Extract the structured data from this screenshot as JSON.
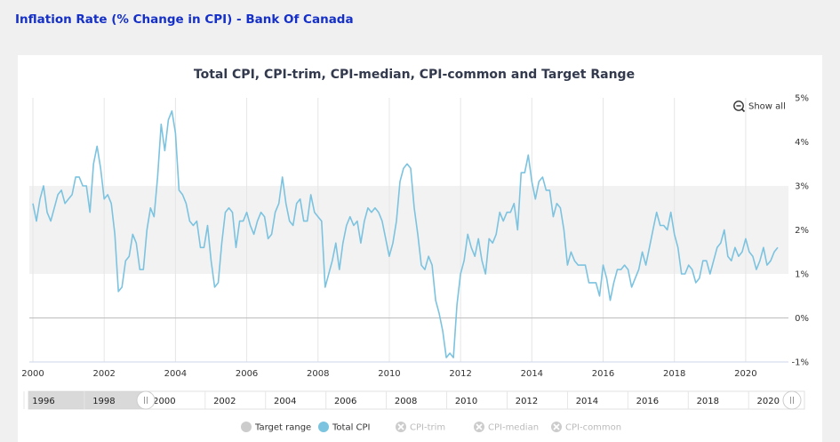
{
  "page": {
    "title": "Inflation Rate (% Change in CPI) - Bank Of Canada"
  },
  "show_all": {
    "label": "Show all"
  },
  "colors": {
    "total_cpi": "#7cc3e0",
    "target_band": "#f2f2f2",
    "legend_on_dot": "#cccccc",
    "legend_off": "#cccccc",
    "title": "#333a4d",
    "page_title": "#1530c8"
  },
  "chart_data": {
    "type": "line",
    "title": "Total CPI, CPI-trim, CPI-median, CPI-common and Target Range",
    "xlim": [
      1999.9,
      2021.2
    ],
    "ylim": [
      -1,
      5
    ],
    "x_ticks": [
      2000,
      2002,
      2004,
      2006,
      2008,
      2010,
      2012,
      2014,
      2016,
      2018,
      2020
    ],
    "x_tick_labels": [
      "2000",
      "2002",
      "2004",
      "2006",
      "2008",
      "2010",
      "2012",
      "2014",
      "2016",
      "2018",
      "2020"
    ],
    "y_ticks": [
      -1,
      0,
      1,
      2,
      3,
      4,
      5
    ],
    "y_tick_labels": [
      "-1%",
      "0%",
      "1%",
      "2%",
      "3%",
      "4%",
      "5%"
    ],
    "grid": "vertical",
    "target_range": [
      1,
      3
    ],
    "legend_position": "bottom-center",
    "legend": [
      {
        "label": "Target range",
        "visible": true
      },
      {
        "label": "Total CPI",
        "visible": true
      },
      {
        "label": "CPI-trim",
        "visible": false
      },
      {
        "label": "CPI-median",
        "visible": false
      },
      {
        "label": "CPI-common",
        "visible": false
      }
    ],
    "series": [
      {
        "name": "Total CPI",
        "points": [
          [
            2000.0,
            2.6
          ],
          [
            2000.1,
            2.2
          ],
          [
            2000.2,
            2.7
          ],
          [
            2000.3,
            3.0
          ],
          [
            2000.4,
            2.4
          ],
          [
            2000.5,
            2.2
          ],
          [
            2000.6,
            2.5
          ],
          [
            2000.7,
            2.8
          ],
          [
            2000.8,
            2.9
          ],
          [
            2000.9,
            2.6
          ],
          [
            2001.0,
            2.7
          ],
          [
            2001.1,
            2.8
          ],
          [
            2001.2,
            3.2
          ],
          [
            2001.3,
            3.2
          ],
          [
            2001.4,
            3.0
          ],
          [
            2001.5,
            3.0
          ],
          [
            2001.6,
            2.4
          ],
          [
            2001.7,
            3.5
          ],
          [
            2001.8,
            3.9
          ],
          [
            2001.9,
            3.4
          ],
          [
            2002.0,
            2.7
          ],
          [
            2002.1,
            2.8
          ],
          [
            2002.2,
            2.6
          ],
          [
            2002.3,
            1.9
          ],
          [
            2002.4,
            0.6
          ],
          [
            2002.5,
            0.7
          ],
          [
            2002.6,
            1.3
          ],
          [
            2002.7,
            1.4
          ],
          [
            2002.8,
            1.9
          ],
          [
            2002.9,
            1.7
          ],
          [
            2003.0,
            1.1
          ],
          [
            2003.1,
            1.1
          ],
          [
            2003.2,
            2.0
          ],
          [
            2003.3,
            2.5
          ],
          [
            2003.4,
            2.3
          ],
          [
            2003.5,
            3.2
          ],
          [
            2003.6,
            4.4
          ],
          [
            2003.7,
            3.8
          ],
          [
            2003.8,
            4.5
          ],
          [
            2003.9,
            4.7
          ],
          [
            2004.0,
            4.2
          ],
          [
            2004.1,
            2.9
          ],
          [
            2004.2,
            2.8
          ],
          [
            2004.3,
            2.6
          ],
          [
            2004.4,
            2.2
          ],
          [
            2004.5,
            2.1
          ],
          [
            2004.6,
            2.2
          ],
          [
            2004.7,
            1.6
          ],
          [
            2004.8,
            1.6
          ],
          [
            2004.9,
            2.1
          ],
          [
            2005.0,
            1.3
          ],
          [
            2005.1,
            0.7
          ],
          [
            2005.2,
            0.8
          ],
          [
            2005.3,
            1.7
          ],
          [
            2005.4,
            2.4
          ],
          [
            2005.5,
            2.5
          ],
          [
            2005.6,
            2.4
          ],
          [
            2005.7,
            1.6
          ],
          [
            2005.8,
            2.2
          ],
          [
            2005.9,
            2.2
          ],
          [
            2006.0,
            2.4
          ],
          [
            2006.1,
            2.1
          ],
          [
            2006.2,
            1.9
          ],
          [
            2006.3,
            2.2
          ],
          [
            2006.4,
            2.4
          ],
          [
            2006.5,
            2.3
          ],
          [
            2006.6,
            1.8
          ],
          [
            2006.7,
            1.9
          ],
          [
            2006.8,
            2.4
          ],
          [
            2006.9,
            2.6
          ],
          [
            2007.0,
            3.2
          ],
          [
            2007.1,
            2.6
          ],
          [
            2007.2,
            2.2
          ],
          [
            2007.3,
            2.1
          ],
          [
            2007.4,
            2.6
          ],
          [
            2007.5,
            2.7
          ],
          [
            2007.6,
            2.2
          ],
          [
            2007.7,
            2.2
          ],
          [
            2007.8,
            2.8
          ],
          [
            2007.9,
            2.4
          ],
          [
            2008.0,
            2.3
          ],
          [
            2008.1,
            2.2
          ],
          [
            2008.2,
            0.7
          ],
          [
            2008.3,
            1.0
          ],
          [
            2008.4,
            1.3
          ],
          [
            2008.5,
            1.7
          ],
          [
            2008.6,
            1.1
          ],
          [
            2008.7,
            1.7
          ],
          [
            2008.8,
            2.1
          ],
          [
            2008.9,
            2.3
          ],
          [
            2009.0,
            2.1
          ],
          [
            2009.1,
            2.2
          ],
          [
            2009.2,
            1.7
          ],
          [
            2009.3,
            2.2
          ],
          [
            2009.4,
            2.5
          ],
          [
            2009.5,
            2.4
          ],
          [
            2009.6,
            2.5
          ],
          [
            2009.7,
            2.4
          ],
          [
            2009.8,
            2.2
          ],
          [
            2009.9,
            1.8
          ],
          [
            2010.0,
            1.4
          ],
          [
            2010.1,
            1.7
          ],
          [
            2010.2,
            2.2
          ],
          [
            2010.3,
            3.1
          ],
          [
            2010.4,
            3.4
          ],
          [
            2010.5,
            3.5
          ],
          [
            2010.6,
            3.4
          ],
          [
            2010.7,
            2.5
          ],
          [
            2010.8,
            1.9
          ],
          [
            2010.9,
            1.2
          ],
          [
            2011.0,
            1.1
          ],
          [
            2011.1,
            1.4
          ],
          [
            2011.2,
            1.2
          ],
          [
            2011.3,
            0.4
          ],
          [
            2011.4,
            0.1
          ],
          [
            2011.5,
            -0.3
          ],
          [
            2011.6,
            -0.9
          ],
          [
            2011.7,
            -0.8
          ],
          [
            2011.8,
            -0.9
          ],
          [
            2011.9,
            0.3
          ],
          [
            2012.0,
            1.0
          ],
          [
            2012.1,
            1.3
          ],
          [
            2012.2,
            1.9
          ],
          [
            2012.3,
            1.6
          ],
          [
            2012.4,
            1.4
          ],
          [
            2012.5,
            1.8
          ],
          [
            2012.6,
            1.3
          ],
          [
            2012.7,
            1.0
          ],
          [
            2012.8,
            1.8
          ],
          [
            2012.9,
            1.7
          ],
          [
            2013.0,
            1.9
          ],
          [
            2013.1,
            2.4
          ],
          [
            2013.2,
            2.2
          ],
          [
            2013.3,
            2.4
          ],
          [
            2013.4,
            2.4
          ],
          [
            2013.5,
            2.6
          ],
          [
            2013.6,
            2.0
          ],
          [
            2013.7,
            3.3
          ],
          [
            2013.8,
            3.3
          ],
          [
            2013.9,
            3.7
          ],
          [
            2014.0,
            3.1
          ],
          [
            2014.1,
            2.7
          ],
          [
            2014.2,
            3.1
          ],
          [
            2014.3,
            3.2
          ],
          [
            2014.4,
            2.9
          ],
          [
            2014.5,
            2.9
          ],
          [
            2014.6,
            2.3
          ],
          [
            2014.7,
            2.6
          ],
          [
            2014.8,
            2.5
          ],
          [
            2014.9,
            2.0
          ],
          [
            2015.0,
            1.2
          ],
          [
            2015.1,
            1.5
          ],
          [
            2015.2,
            1.3
          ],
          [
            2015.3,
            1.2
          ],
          [
            2015.4,
            1.2
          ],
          [
            2015.5,
            1.2
          ],
          [
            2015.6,
            0.8
          ],
          [
            2015.7,
            0.8
          ],
          [
            2015.8,
            0.8
          ],
          [
            2015.9,
            0.5
          ],
          [
            2016.0,
            1.2
          ],
          [
            2016.1,
            0.9
          ],
          [
            2016.2,
            0.4
          ],
          [
            2016.3,
            0.8
          ],
          [
            2016.4,
            1.1
          ],
          [
            2016.5,
            1.1
          ],
          [
            2016.6,
            1.2
          ],
          [
            2016.7,
            1.1
          ],
          [
            2016.8,
            0.7
          ],
          [
            2016.9,
            0.9
          ],
          [
            2017.0,
            1.1
          ],
          [
            2017.1,
            1.5
          ],
          [
            2017.2,
            1.2
          ],
          [
            2017.3,
            1.6
          ],
          [
            2017.4,
            2.0
          ],
          [
            2017.5,
            2.4
          ],
          [
            2017.6,
            2.1
          ],
          [
            2017.7,
            2.1
          ],
          [
            2017.8,
            2.0
          ],
          [
            2017.9,
            2.4
          ],
          [
            2018.0,
            1.9
          ],
          [
            2018.1,
            1.6
          ],
          [
            2018.2,
            1.0
          ],
          [
            2018.3,
            1.0
          ],
          [
            2018.4,
            1.2
          ],
          [
            2018.5,
            1.1
          ],
          [
            2018.6,
            0.8
          ],
          [
            2018.7,
            0.9
          ],
          [
            2018.8,
            1.3
          ],
          [
            2018.9,
            1.3
          ],
          [
            2019.0,
            1.0
          ],
          [
            2019.1,
            1.3
          ],
          [
            2019.2,
            1.6
          ],
          [
            2019.3,
            1.7
          ],
          [
            2019.4,
            2.0
          ],
          [
            2019.5,
            1.4
          ],
          [
            2019.6,
            1.3
          ],
          [
            2019.7,
            1.6
          ],
          [
            2019.8,
            1.4
          ],
          [
            2019.9,
            1.5
          ],
          [
            2020.0,
            1.8
          ],
          [
            2020.1,
            1.5
          ],
          [
            2020.2,
            1.4
          ],
          [
            2020.3,
            1.1
          ],
          [
            2020.4,
            1.3
          ],
          [
            2020.5,
            1.6
          ],
          [
            2020.6,
            1.2
          ],
          [
            2020.7,
            1.3
          ],
          [
            2020.8,
            1.5
          ],
          [
            2020.9,
            1.6
          ]
        ]
      }
    ]
  },
  "navigator": {
    "x_ticks": [
      1996,
      1998,
      2000,
      2002,
      2004,
      2006,
      2008,
      2010,
      2012,
      2014,
      2016,
      2018,
      2020
    ],
    "labels": [
      "1996",
      "1998",
      "2000",
      "2002",
      "2004",
      "2006",
      "2008",
      "2010",
      "2012",
      "2014",
      "2016",
      "2018",
      "2020"
    ]
  }
}
